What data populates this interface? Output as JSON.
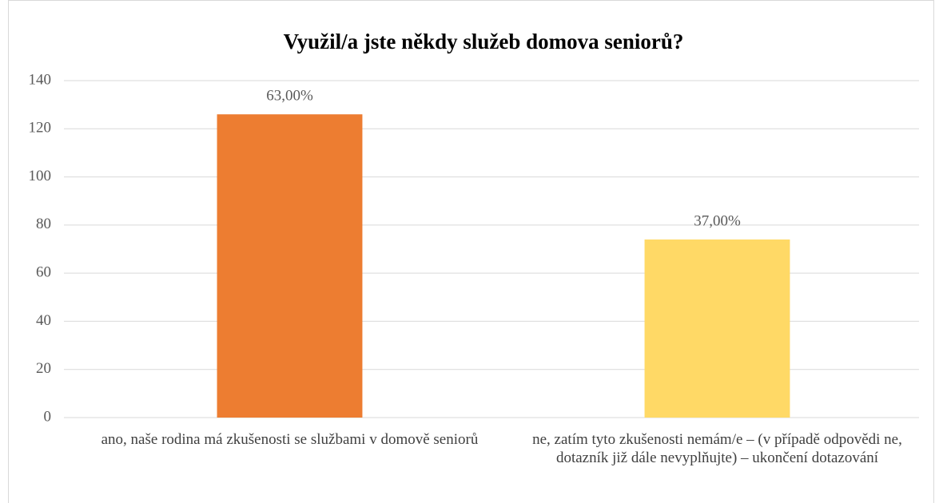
{
  "chart_data": {
    "type": "bar",
    "title": "Využil/a jste někdy služeb domova seniorů?",
    "categories": [
      "ano, naše rodina má zkušenosti se službami v domově seniorů",
      "ne, zatím tyto zkušenosti nemám/e – (v případě odpovědi ne, dotazník již dále nevyplňujte) – ukončení dotazování"
    ],
    "values": [
      126,
      74
    ],
    "value_labels": [
      "63,00%",
      "37,00%"
    ],
    "colors": [
      "#ed7d31",
      "#ffd966"
    ],
    "ylim": [
      0,
      140
    ],
    "yticks": [
      0,
      20,
      40,
      60,
      80,
      100,
      120,
      140
    ],
    "grid": true
  }
}
